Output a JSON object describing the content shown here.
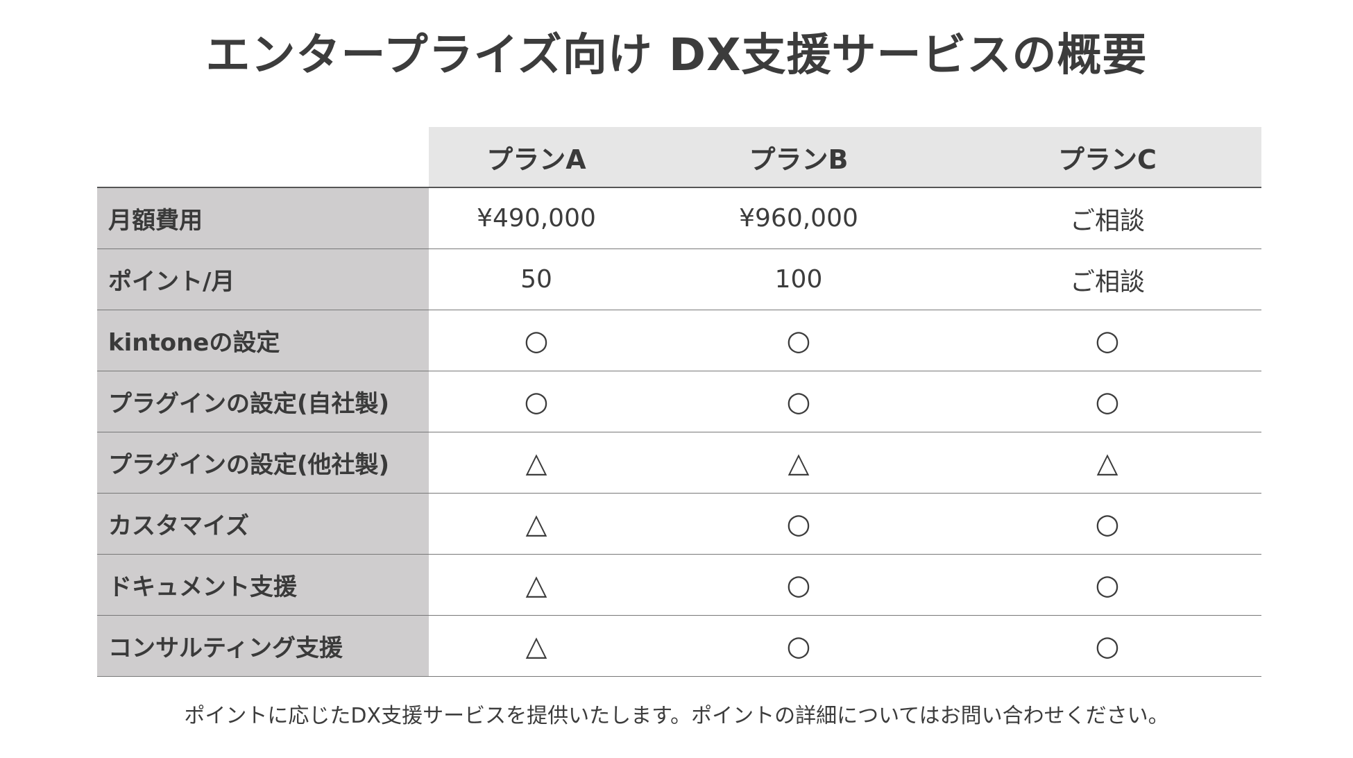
{
  "title": "エンタープライズ向け DX支援サービスの概要",
  "plans": [
    "プランA",
    "プランB",
    "プランC"
  ],
  "rows": [
    {
      "label": "月額費用",
      "values": [
        "¥490,000",
        "¥960,000",
        "ご相談"
      ]
    },
    {
      "label": "ポイント/月",
      "values": [
        "50",
        "100",
        "ご相談"
      ]
    },
    {
      "label": "kintoneの設定",
      "values": [
        "○",
        "○",
        "○"
      ]
    },
    {
      "label": "プラグインの設定(自社製)",
      "values": [
        "○",
        "○",
        "○"
      ]
    },
    {
      "label": "プラグインの設定(他社製)",
      "values": [
        "△",
        "△",
        "△"
      ]
    },
    {
      "label": "カスタマイズ",
      "values": [
        "△",
        "○",
        "○"
      ]
    },
    {
      "label": "ドキュメント支援",
      "values": [
        "△",
        "○",
        "○"
      ]
    },
    {
      "label": "コンサルティング支援",
      "values": [
        "△",
        "○",
        "○"
      ]
    }
  ],
  "footnote": "ポイントに応じたDX支援サービスを提供いたします。ポイントの詳細についてはお問い合わせください。",
  "colors": {
    "label_bg": "#cfcdce",
    "header_bg": "#e6e6e6",
    "text": "#3c3c3c",
    "rule": "#777777"
  }
}
